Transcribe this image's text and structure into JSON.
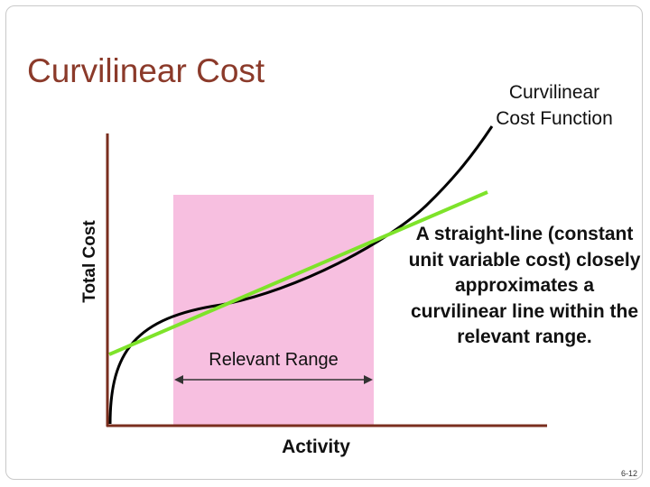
{
  "slide": {
    "title": "Curvilinear Cost",
    "page_number": "6-12"
  },
  "diagram": {
    "function_label_line1": "Curvilinear",
    "function_label_line2": "Cost Function",
    "y_axis_label": "Total Cost",
    "x_axis_label": "Activity",
    "range_label": "Relevant Range",
    "note": "A straight-line (constant unit variable cost) closely approximates a curvilinear line within the relevant range."
  },
  "colors": {
    "title": "#8b3a2a",
    "axis": "#7a2e1e",
    "relevant_range_fill": "#f7bfe0",
    "linear_line": "#7ee32a",
    "curve": "#000000"
  }
}
